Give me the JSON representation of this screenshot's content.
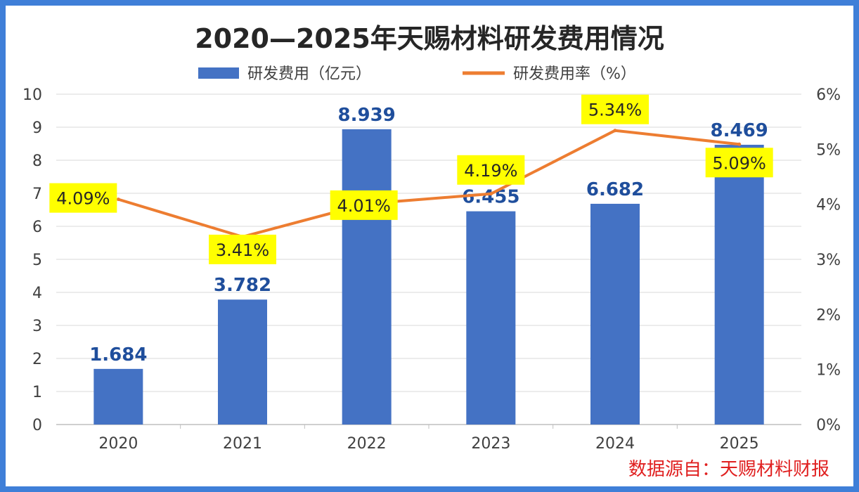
{
  "chart_data": {
    "type": "bar+line",
    "title": "2020—2025年天赐材料研发费用情况",
    "categories": [
      "2020",
      "2021",
      "2022",
      "2023",
      "2024",
      "2025"
    ],
    "series": [
      {
        "name": "研发费用（亿元）",
        "type": "bar",
        "axis": "left",
        "values": [
          1.684,
          3.782,
          8.939,
          6.455,
          6.682,
          8.469
        ],
        "labels": [
          "1.684",
          "3.782",
          "8.939",
          "6.455",
          "6.682",
          "8.469"
        ]
      },
      {
        "name": "研发费用率（%）",
        "type": "line",
        "axis": "right",
        "values": [
          4.09,
          3.41,
          4.01,
          4.19,
          5.34,
          5.09
        ],
        "labels": [
          "4.09%",
          "3.41%",
          "4.01%",
          "4.19%",
          "5.34%",
          "5.09%"
        ]
      }
    ],
    "left_axis": {
      "ylim": [
        0,
        10
      ],
      "ticks": [
        "0",
        "1",
        "2",
        "3",
        "4",
        "5",
        "6",
        "7",
        "8",
        "9",
        "10"
      ]
    },
    "right_axis": {
      "ylim": [
        0,
        6
      ],
      "ticks": [
        "0%",
        "1%",
        "2%",
        "3%",
        "4%",
        "5%",
        "6%"
      ]
    },
    "grid": true,
    "legend": "top-center"
  },
  "source_note": "数据源自：天赐材料财报",
  "colors": {
    "bar": "#4472c4",
    "line": "#ed7d31",
    "bar_label": "#1f4e9c",
    "highlight": "#ffff00",
    "title": "#262626",
    "source": "#e02020",
    "border": "#3f7fd8"
  }
}
